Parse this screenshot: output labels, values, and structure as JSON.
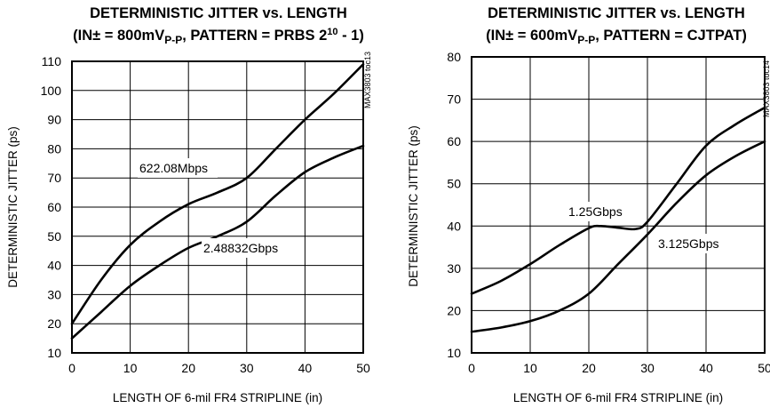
{
  "chart_data": [
    {
      "type": "line",
      "title": "DETERMINISTIC JITTER vs. LENGTH",
      "subtitle_parts": {
        "a": "(IN± = 800mV",
        "b": "P-P",
        "c": ", PATTERN = PRBS 2",
        "d": "10",
        "e": " - 1)"
      },
      "xlabel": "LENGTH OF 6-mil FR4 STRIPLINE (in)",
      "ylabel": "DETERMINISTIC JITTER (ps)",
      "xlim": [
        0,
        50
      ],
      "ylim": [
        10,
        110
      ],
      "xticks": [
        "0",
        "10",
        "20",
        "30",
        "40",
        "50"
      ],
      "yticks": [
        "10",
        "20",
        "30",
        "40",
        "50",
        "60",
        "70",
        "80",
        "90",
        "100",
        "110"
      ],
      "grid": true,
      "watermark": "MAX3803 toc13",
      "series": [
        {
          "name": "622.08Mbps",
          "x": [
            0,
            5,
            10,
            15,
            20,
            25,
            30,
            35,
            40,
            45,
            50
          ],
          "y": [
            20,
            35,
            47,
            55,
            61,
            65,
            70,
            80,
            90,
            99,
            109
          ]
        },
        {
          "name": "2.48832Gbps",
          "x": [
            0,
            5,
            10,
            15,
            20,
            25,
            30,
            35,
            40,
            45,
            50
          ],
          "y": [
            15,
            24,
            33,
            40,
            46,
            50,
            55,
            64,
            72,
            77,
            81
          ]
        }
      ]
    },
    {
      "type": "line",
      "title": "DETERMINISTIC JITTER vs. LENGTH",
      "subtitle_parts": {
        "a": "(IN± = 600mV",
        "b": "P-P",
        "c": ", PATTERN = CJTPAT)"
      },
      "xlabel": "LENGTH OF 6-mil FR4 STRIPLINE (in)",
      "ylabel": "DETERMINISTIC JITTER (ps)",
      "xlim": [
        0,
        50
      ],
      "ylim": [
        10,
        80
      ],
      "xticks": [
        "0",
        "10",
        "20",
        "30",
        "40",
        "50"
      ],
      "yticks": [
        "10",
        "20",
        "30",
        "40",
        "50",
        "60",
        "70",
        "80"
      ],
      "grid": true,
      "watermark": "MAX3803 toc14",
      "series": [
        {
          "name": "1.25Gbps",
          "x": [
            0,
            5,
            10,
            15,
            20,
            22,
            25,
            28,
            30,
            35,
            40,
            45,
            50
          ],
          "y": [
            24,
            27,
            31,
            35.5,
            39.5,
            40,
            39.6,
            39.3,
            41,
            50,
            59,
            64,
            68
          ]
        },
        {
          "name": "3.125Gbps",
          "x": [
            0,
            5,
            10,
            15,
            20,
            25,
            30,
            35,
            40,
            45,
            50
          ],
          "y": [
            15,
            16,
            17.5,
            20,
            24,
            31,
            38,
            45.5,
            52,
            56.5,
            60
          ]
        }
      ]
    }
  ]
}
